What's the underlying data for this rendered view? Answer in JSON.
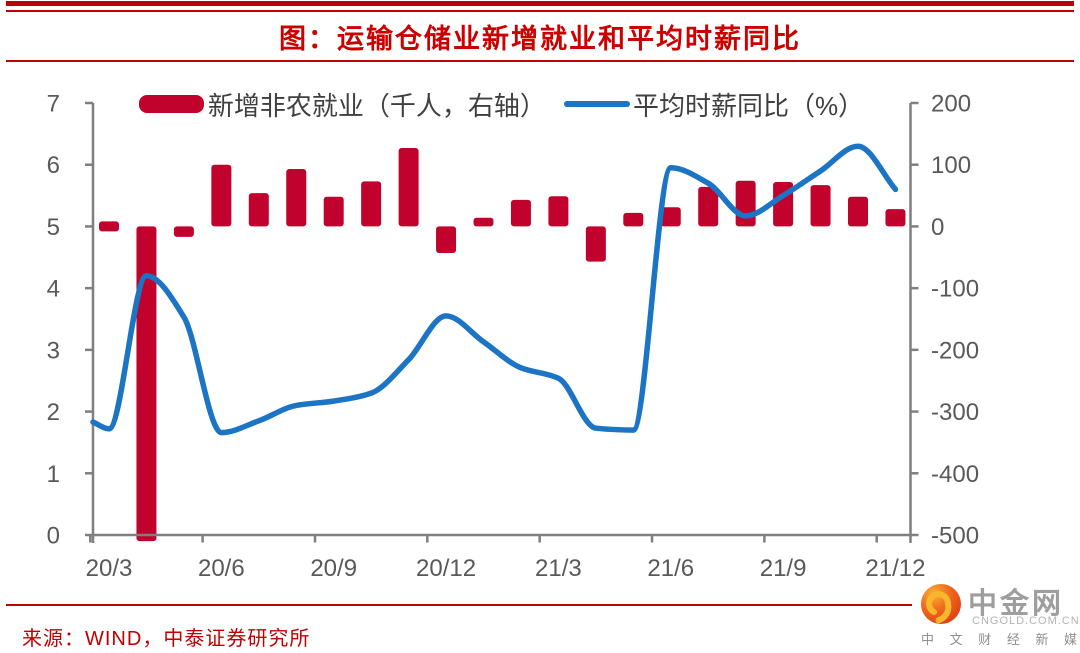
{
  "header": {
    "title": "图：运输仓储业新增就业和平均时薪同比"
  },
  "legend": {
    "items": [
      {
        "label": "新增非农就业（千人，右轴）",
        "type": "bar",
        "color": "#C1022C"
      },
      {
        "label": "平均时薪同比（%）",
        "type": "line",
        "color": "#1B75C4"
      }
    ]
  },
  "chart_data": {
    "type": "bar+line",
    "title": "运输仓储业新增就业和平均时薪同比",
    "categories": [
      "20/3",
      "20/4",
      "20/5",
      "20/6",
      "20/7",
      "20/8",
      "20/9",
      "20/10",
      "20/11",
      "20/12",
      "21/1",
      "21/2",
      "21/3",
      "21/4",
      "21/5",
      "21/6",
      "21/7",
      "21/8",
      "21/9",
      "21/10",
      "21/11",
      "21/12"
    ],
    "x_tick_labels": [
      "20/3",
      "20/6",
      "20/9",
      "20/12",
      "21/3",
      "21/6",
      "21/9",
      "21/12"
    ],
    "series": [
      {
        "name": "新增非农就业（千人，右轴）",
        "type": "bar",
        "axis": "right",
        "color": "#C1022C",
        "values": [
          -5,
          -510,
          -17,
          100,
          54,
          93,
          48,
          73,
          127,
          -43,
          14,
          43,
          49,
          -57,
          22,
          31,
          64,
          74,
          72,
          67,
          48,
          28
        ],
        "note": "20/4 bar is clipped at the -500 axis floor"
      },
      {
        "name": "平均时薪同比（%）",
        "type": "line",
        "axis": "left",
        "color": "#1B75C4",
        "lead_in_value": 1.83,
        "values": [
          1.72,
          4.2,
          3.53,
          1.66,
          1.85,
          2.1,
          2.17,
          2.3,
          2.84,
          3.55,
          3.13,
          2.71,
          2.54,
          1.73,
          1.7,
          5.95,
          5.7,
          5.17,
          5.5,
          5.9,
          6.3,
          5.6
        ]
      }
    ],
    "left_axis": {
      "min": 0,
      "max": 7,
      "ticks": [
        7,
        6,
        5,
        4,
        3,
        2,
        1,
        0
      ]
    },
    "right_axis": {
      "min": -500,
      "max": 200,
      "ticks": [
        200,
        100,
        0,
        -100,
        -200,
        -300,
        -400,
        -500
      ]
    },
    "grid": "off",
    "legend_position": "top-center"
  },
  "colors": {
    "bar": "#C1022C",
    "line": "#1B75C4",
    "axis": "#7F7F7F",
    "tick_label": "#595959",
    "legend_text": "#3F3F3F",
    "title_red": "#CD0000",
    "rule_red": "#C00000"
  },
  "source": {
    "text": "来源：WIND，中泰证券研究所"
  },
  "logo": {
    "name": "中金网",
    "domain": "CNGOLD.COM.CN",
    "tagline": "中 文 财 经 新 媒 体"
  }
}
